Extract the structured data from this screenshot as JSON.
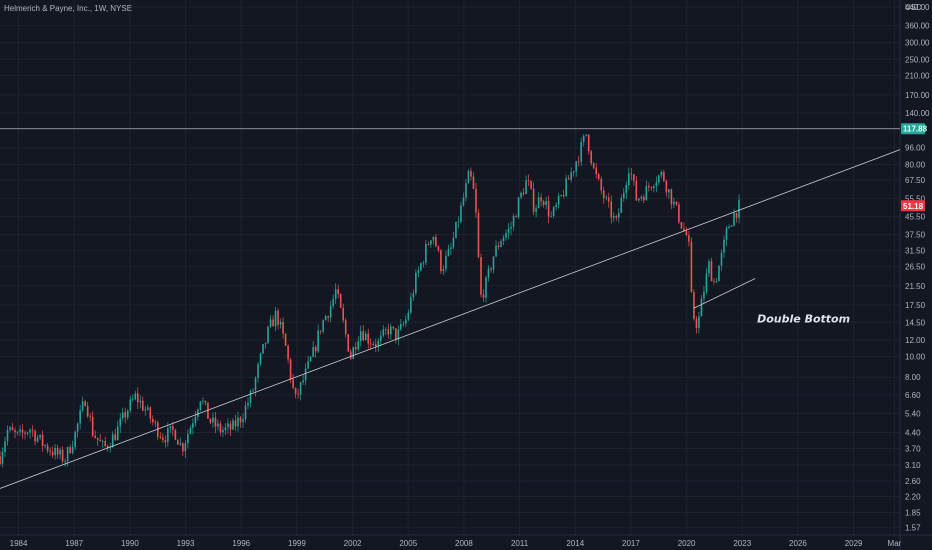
{
  "chart_data": {
    "type": "candlestick",
    "title": "Helmerich & Payne, Inc., 1W, NYSE",
    "currency": "USD",
    "y_scale": "log",
    "ylim": [
      1.45,
      475
    ],
    "xlim": [
      1983.0,
      2031.5
    ],
    "y_ticks": [
      "440.00",
      "360.00",
      "300.00",
      "250.00",
      "210.00",
      "170.00",
      "140.00",
      "96.00",
      "80.00",
      "67.50",
      "55.50",
      "45.50",
      "37.50",
      "31.50",
      "26.50",
      "21.50",
      "17.50",
      "14.50",
      "12.00",
      "10.00",
      "8.00",
      "6.60",
      "5.40",
      "4.40",
      "3.70",
      "3.10",
      "2.60",
      "2.20",
      "1.85",
      "1.57"
    ],
    "x_ticks": [
      {
        "label": "1984",
        "value": 1984
      },
      {
        "label": "1987",
        "value": 1987
      },
      {
        "label": "1990",
        "value": 1990
      },
      {
        "label": "1993",
        "value": 1993
      },
      {
        "label": "1996",
        "value": 1996
      },
      {
        "label": "1999",
        "value": 1999
      },
      {
        "label": "2002",
        "value": 2002
      },
      {
        "label": "2005",
        "value": 2005
      },
      {
        "label": "2008",
        "value": 2008
      },
      {
        "label": "2011",
        "value": 2011
      },
      {
        "label": "2014",
        "value": 2014
      },
      {
        "label": "2017",
        "value": 2017
      },
      {
        "label": "2020",
        "value": 2020
      },
      {
        "label": "2023",
        "value": 2023
      },
      {
        "label": "2026",
        "value": 2026
      },
      {
        "label": "2029",
        "value": 2029
      },
      {
        "label": "Mar",
        "value": 2031.2
      }
    ],
    "price_path": [
      [
        1983.0,
        3.4
      ],
      [
        1983.4,
        4.5
      ],
      [
        1984.0,
        4.2
      ],
      [
        1984.6,
        4.6
      ],
      [
        1985.3,
        3.9
      ],
      [
        1986.0,
        3.5
      ],
      [
        1986.5,
        3.3
      ],
      [
        1987.0,
        4.2
      ],
      [
        1987.6,
        6.4
      ],
      [
        1988.0,
        4.4
      ],
      [
        1988.6,
        3.7
      ],
      [
        1989.2,
        4.3
      ],
      [
        1989.8,
        5.5
      ],
      [
        1990.3,
        6.5
      ],
      [
        1990.8,
        5.7
      ],
      [
        1991.3,
        4.8
      ],
      [
        1991.8,
        4.2
      ],
      [
        1992.4,
        4.5
      ],
      [
        1992.8,
        3.7
      ],
      [
        1993.3,
        4.8
      ],
      [
        1993.8,
        6.5
      ],
      [
        1994.3,
        5.0
      ],
      [
        1994.9,
        4.5
      ],
      [
        1995.5,
        4.6
      ],
      [
        1996.0,
        5.2
      ],
      [
        1996.6,
        6.8
      ],
      [
        1997.0,
        9.5
      ],
      [
        1997.5,
        13.5
      ],
      [
        1997.9,
        16.0
      ],
      [
        1998.4,
        11.0
      ],
      [
        1998.9,
        6.2
      ],
      [
        1999.4,
        8.0
      ],
      [
        1999.9,
        10.5
      ],
      [
        2000.3,
        14.0
      ],
      [
        2000.9,
        18.0
      ],
      [
        2001.1,
        20.5
      ],
      [
        2001.6,
        13.0
      ],
      [
        2001.9,
        10.0
      ],
      [
        2002.4,
        13.5
      ],
      [
        2002.9,
        12.0
      ],
      [
        2003.4,
        11.5
      ],
      [
        2003.9,
        13.5
      ],
      [
        2004.4,
        12.5
      ],
      [
        2004.9,
        15.0
      ],
      [
        2005.4,
        23.0
      ],
      [
        2005.9,
        31.0
      ],
      [
        2006.3,
        39.0
      ],
      [
        2006.8,
        26.0
      ],
      [
        2007.3,
        32.0
      ],
      [
        2007.8,
        48.0
      ],
      [
        2008.3,
        73.0
      ],
      [
        2008.6,
        55.0
      ],
      [
        2008.9,
        19.0
      ],
      [
        2009.2,
        22.0
      ],
      [
        2009.6,
        30.0
      ],
      [
        2010.0,
        36.0
      ],
      [
        2010.5,
        40.0
      ],
      [
        2011.0,
        55.0
      ],
      [
        2011.4,
        68.0
      ],
      [
        2011.8,
        50.0
      ],
      [
        2012.2,
        58.0
      ],
      [
        2012.7,
        45.0
      ],
      [
        2013.2,
        55.0
      ],
      [
        2013.7,
        70.0
      ],
      [
        2014.2,
        90.0
      ],
      [
        2014.6,
        112.0
      ],
      [
        2015.0,
        75.0
      ],
      [
        2015.4,
        60.0
      ],
      [
        2015.8,
        50.0
      ],
      [
        2016.2,
        42.0
      ],
      [
        2016.6,
        60.0
      ],
      [
        2016.9,
        80.0
      ],
      [
        2017.3,
        55.0
      ],
      [
        2017.8,
        60.0
      ],
      [
        2018.2,
        68.0
      ],
      [
        2018.7,
        72.0
      ],
      [
        2019.1,
        58.0
      ],
      [
        2019.6,
        45.0
      ],
      [
        2019.9,
        38.0
      ],
      [
        2020.1,
        36.0
      ],
      [
        2020.3,
        16.0
      ],
      [
        2020.6,
        14.0
      ],
      [
        2020.9,
        20.0
      ],
      [
        2021.2,
        27.0
      ],
      [
        2021.5,
        22.0
      ],
      [
        2021.9,
        30.0
      ],
      [
        2022.2,
        40.0
      ],
      [
        2022.5,
        46.0
      ],
      [
        2022.9,
        52.0
      ]
    ],
    "horizontal_line": {
      "value": 117.88,
      "label": "117.88",
      "color": "#b2b5be"
    },
    "last_price": {
      "value": 51.18,
      "label": "51.18",
      "color": "#f23645"
    },
    "resistance_badge_color": "#26a69a",
    "trendlines": [
      {
        "name": "long-term-support",
        "from": [
          1983.0,
          2.4
        ],
        "to": [
          2031.5,
          94.0
        ]
      },
      {
        "name": "double-bottom-support",
        "from": [
          2020.4,
          16.9
        ],
        "to": [
          2023.7,
          23.3
        ]
      }
    ],
    "annotations": [
      {
        "text": "Double Bottom",
        "x": 2023.8,
        "y": 14.5
      }
    ],
    "colors": {
      "up": "#26a69a",
      "down": "#ef5350",
      "background": "#131722",
      "grid": "#1e222d",
      "axis_text": "#b2b5be"
    }
  }
}
